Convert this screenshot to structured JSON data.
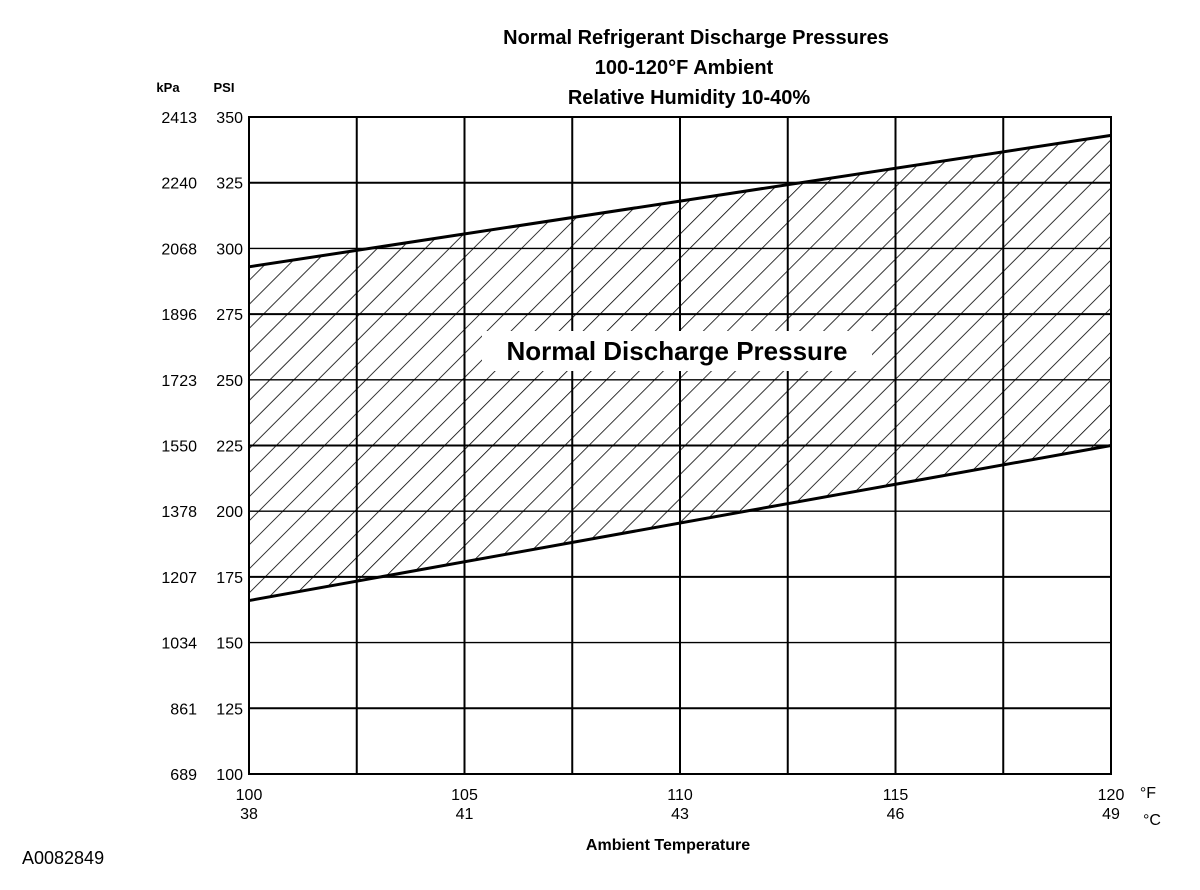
{
  "figure_id": "A0082849",
  "chart_data": {
    "type": "area",
    "title_lines": [
      "Normal  Refrigerant  Discharge  Pressures",
      "100-120°F Ambient",
      "Relative Humidity 10-40%"
    ],
    "xlabel": "Ambient Temperature",
    "y_unit_headers": {
      "kpa": "kPa",
      "psi": "PSI"
    },
    "x_unit_headers": {
      "f": "°F",
      "c": "°C"
    },
    "xlim": [
      100,
      120
    ],
    "ylim": [
      100,
      350
    ],
    "grid": true,
    "y_ticks": [
      {
        "psi": 350,
        "kpa": "2413"
      },
      {
        "psi": 325,
        "kpa": "2240"
      },
      {
        "psi": 300,
        "kpa": "2068"
      },
      {
        "psi": 275,
        "kpa": "1896"
      },
      {
        "psi": 250,
        "kpa": "1723"
      },
      {
        "psi": 225,
        "kpa": "1550"
      },
      {
        "psi": 200,
        "kpa": "1378"
      },
      {
        "psi": 175,
        "kpa": "1207"
      },
      {
        "psi": 150,
        "kpa": "1034"
      },
      {
        "psi": 125,
        "kpa": "861"
      },
      {
        "psi": 100,
        "kpa": "689"
      }
    ],
    "x_ticks": [
      {
        "f": 100,
        "c": "38"
      },
      {
        "f": 105,
        "c": "41"
      },
      {
        "f": 110,
        "c": "43"
      },
      {
        "f": 115,
        "c": "46"
      },
      {
        "f": 120,
        "c": "49"
      }
    ],
    "x_gridlines": [
      100,
      102.5,
      105,
      107.5,
      110,
      112.5,
      115,
      117.5,
      120
    ],
    "band": {
      "label": "Normal Discharge Pressure",
      "x": [
        100,
        120
      ],
      "upper": [
        293,
        343
      ],
      "lower": [
        166,
        225
      ]
    }
  }
}
